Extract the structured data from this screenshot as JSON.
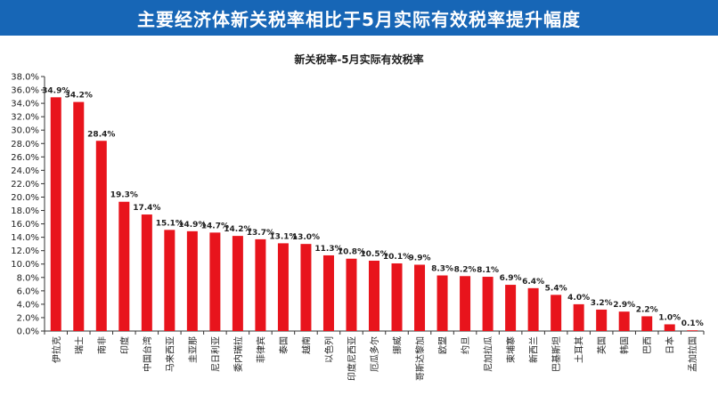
{
  "header": {
    "title": "主要经济体新关税率相比于5月实际有效税率提升幅度"
  },
  "colors": {
    "header_bg": "#1766b6",
    "bar": "#e8141c"
  },
  "chart_data": {
    "type": "bar",
    "title": "新关税率-5月实际有效税率",
    "xlabel": "",
    "ylabel": "",
    "ylim": [
      0,
      38
    ],
    "ytick_step": 2,
    "grid": false,
    "legend": "none",
    "categories": [
      "伊拉克",
      "瑞士",
      "南非",
      "印度",
      "中国台湾",
      "马来西亚",
      "圭亚那",
      "尼日利亚",
      "委内瑞拉",
      "菲律宾",
      "泰国",
      "越南",
      "以色列",
      "印度尼西亚",
      "厄瓜多尔",
      "挪威",
      "哥斯达黎加",
      "欧盟",
      "约旦",
      "尼加拉瓜",
      "柬埔寨",
      "新西兰",
      "巴基斯坦",
      "土耳其",
      "英国",
      "韩国",
      "巴西",
      "日本",
      "孟加拉国"
    ],
    "values": [
      34.9,
      34.2,
      28.4,
      19.3,
      17.4,
      15.1,
      14.9,
      14.7,
      14.2,
      13.7,
      13.1,
      13.0,
      11.3,
      10.8,
      10.5,
      10.1,
      9.9,
      8.3,
      8.2,
      8.1,
      6.9,
      6.4,
      5.4,
      4.0,
      3.2,
      2.9,
      2.2,
      1.0,
      0.1
    ],
    "data_labels": [
      "34.9%",
      "34.2%",
      "28.4%",
      "19.3%",
      "17.4%",
      "15.1%",
      "14.9%",
      "14.7%",
      "14.2%",
      "13.7%",
      "13.1%",
      "13.0%",
      "11.3%",
      "10.8%",
      "10.5%",
      "10.1%",
      "9.9%",
      "8.3%",
      "8.2%",
      "8.1%",
      "6.9%",
      "6.4%",
      "5.4%",
      "4.0%",
      "3.2%",
      "2.9%",
      "2.2%",
      "1.0%",
      "0.1%"
    ],
    "y_tick_labels": [
      "0.0%",
      "2.0%",
      "4.0%",
      "6.0%",
      "8.0%",
      "10.0%",
      "12.0%",
      "14.0%",
      "16.0%",
      "18.0%",
      "20.0%",
      "22.0%",
      "24.0%",
      "26.0%",
      "28.0%",
      "30.0%",
      "32.0%",
      "34.0%",
      "36.0%",
      "38.0%"
    ]
  }
}
